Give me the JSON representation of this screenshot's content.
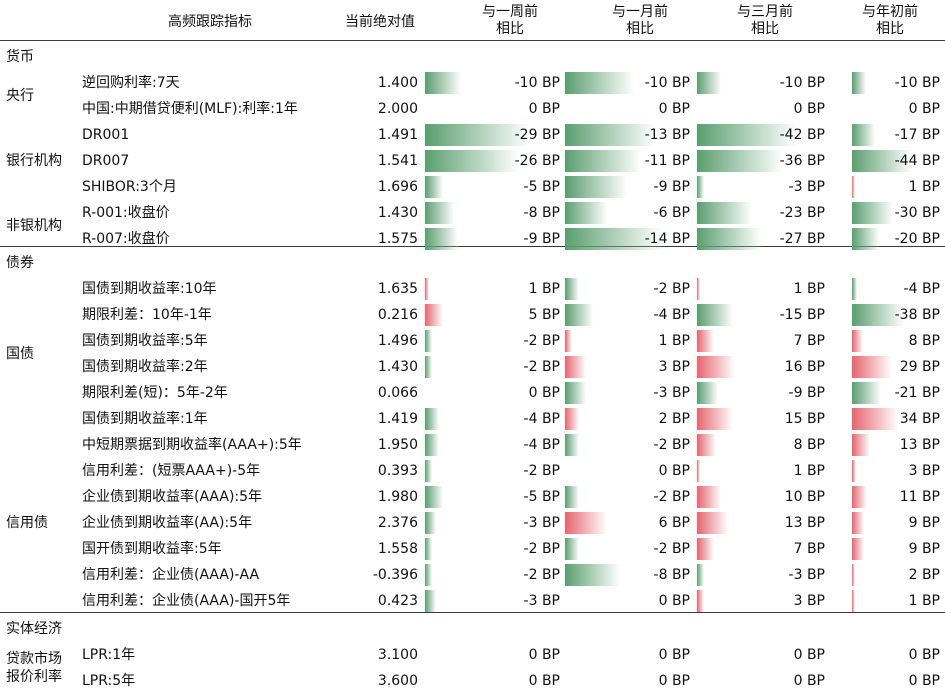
{
  "header": {
    "indicator": "高频跟踪指标",
    "current": "当前绝对值",
    "w1": [
      "与一周前",
      "相比"
    ],
    "m1": [
      "与一月前",
      "相比"
    ],
    "m3": [
      "与三月前",
      "相比"
    ],
    "ytd": [
      "与年初前",
      "相比"
    ]
  },
  "unit": "BP",
  "colors": {
    "neg": "#5a9e6f",
    "pos": "#e8646e"
  },
  "sections": [
    {
      "title": "货币",
      "groups": [
        {
          "label": "央行",
          "rows": [
            {
              "name": "逆回购利率:7天",
              "current": "1.400",
              "w1": -10,
              "m1": -10,
              "m3": -10,
              "ytd": -10
            },
            {
              "name": "中国:中期借贷便利(MLF):利率:1年",
              "current": "2.000",
              "w1": 0,
              "m1": 0,
              "m3": 0,
              "ytd": 0
            }
          ]
        },
        {
          "label": "银行机构",
          "rows": [
            {
              "name": "DR001",
              "current": "1.491",
              "w1": -29,
              "m1": -13,
              "m3": -42,
              "ytd": -17
            },
            {
              "name": "DR007",
              "current": "1.541",
              "w1": -26,
              "m1": -11,
              "m3": -36,
              "ytd": -44
            },
            {
              "name": "SHIBOR:3个月",
              "current": "1.696",
              "w1": -5,
              "m1": -9,
              "m3": -3,
              "ytd": 1
            }
          ]
        },
        {
          "label": "非银机构",
          "rows": [
            {
              "name": "R-001:收盘价",
              "current": "1.430",
              "w1": -8,
              "m1": -6,
              "m3": -23,
              "ytd": -30
            },
            {
              "name": "R-007:收盘价",
              "current": "1.575",
              "w1": -9,
              "m1": -14,
              "m3": -27,
              "ytd": -20
            }
          ]
        }
      ]
    },
    {
      "title": "债券",
      "groups": [
        {
          "label": "国债",
          "rows": [
            {
              "name": "国债到期收益率:10年",
              "current": "1.635",
              "w1": 1,
              "m1": -2,
              "m3": 1,
              "ytd": -4
            },
            {
              "name": "期限利差：10年-1年",
              "current": "0.216",
              "w1": 5,
              "m1": -4,
              "m3": -15,
              "ytd": -38
            },
            {
              "name": "国债到期收益率:5年",
              "current": "1.496",
              "w1": -2,
              "m1": 1,
              "m3": 7,
              "ytd": 8
            },
            {
              "name": "国债到期收益率:2年",
              "current": "1.430",
              "w1": -2,
              "m1": 3,
              "m3": 16,
              "ytd": 29
            },
            {
              "name": "期限利差(短)：5年-2年",
              "current": "0.066",
              "w1": 0,
              "m1": -3,
              "m3": -9,
              "ytd": -21
            },
            {
              "name": "国债到期收益率:1年",
              "current": "1.419",
              "w1": -4,
              "m1": 2,
              "m3": 15,
              "ytd": 34
            }
          ]
        },
        {
          "label": "信用债",
          "rows": [
            {
              "name": "中短期票据到期收益率(AAA+):5年",
              "current": "1.950",
              "w1": -4,
              "m1": -2,
              "m3": 8,
              "ytd": 13
            },
            {
              "name": "信用利差：(短票AAA+)-5年",
              "current": "0.393",
              "w1": -2,
              "m1": 0,
              "m3": 1,
              "ytd": 3
            },
            {
              "name": "企业债到期收益率(AAA):5年",
              "current": "1.980",
              "w1": -5,
              "m1": -2,
              "m3": 10,
              "ytd": 11
            },
            {
              "name": "企业债到期收益率(AA):5年",
              "current": "2.376",
              "w1": -3,
              "m1": 6,
              "m3": 13,
              "ytd": 9
            },
            {
              "name": "国开债到期收益率:5年",
              "current": "1.558",
              "w1": -2,
              "m1": -2,
              "m3": 7,
              "ytd": 9
            },
            {
              "name": "信用利差：企业债(AAA)-AA",
              "current": "-0.396",
              "w1": -2,
              "m1": -8,
              "m3": -3,
              "ytd": 2
            },
            {
              "name": "信用利差：企业债(AAA)-国开5年",
              "current": "0.423",
              "w1": -3,
              "m1": 0,
              "m3": 3,
              "ytd": 1
            }
          ]
        }
      ]
    },
    {
      "title": "实体经济",
      "groups": [
        {
          "label": "贷款市场报价利率",
          "label_lines": [
            "贷款市场",
            "报价利率"
          ],
          "rows": [
            {
              "name": "LPR:1年",
              "current": "3.100",
              "w1": 0,
              "m1": 0,
              "m3": 0,
              "ytd": 0
            },
            {
              "name": "LPR:5年",
              "current": "3.600",
              "w1": 0,
              "m1": 0,
              "m3": 0,
              "ytd": 0
            }
          ]
        }
      ]
    }
  ]
}
